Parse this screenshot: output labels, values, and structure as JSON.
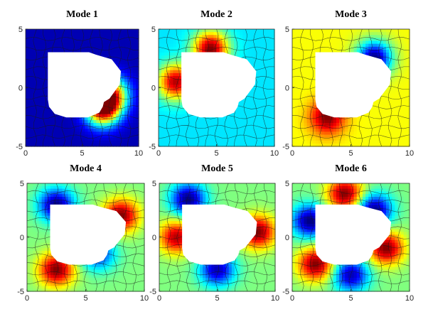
{
  "figure": {
    "layout": "2x3 grid of surface plots on a quadrilateral mesh",
    "colormap": "jet",
    "grid": true
  },
  "chart_data": [
    {
      "type": "heatmap",
      "title": "Mode 1",
      "xlim": [
        0,
        10
      ],
      "ylim": [
        -5,
        5
      ],
      "xticks": [
        "0",
        "5",
        "10"
      ],
      "yticks": [
        "5",
        "0",
        "-5"
      ],
      "pattern": "mostly minimum (dark blue) with a maximum (red) near the notch at the right of the hole",
      "hotspots": [
        {
          "x": 6.8,
          "y": -1.7,
          "level": 1.0
        },
        {
          "x": 7.6,
          "y": -0.5,
          "level": 0.7
        }
      ]
    },
    {
      "type": "heatmap",
      "title": "Mode 2",
      "xlim": [
        0,
        10
      ],
      "ylim": [
        -5,
        5
      ],
      "xticks": [
        "0",
        "5",
        "10"
      ],
      "yticks": [
        "5",
        "0",
        "-5"
      ],
      "pattern": "high ring around the upper and left edges of the hole",
      "hotspots": [
        {
          "x": 4.5,
          "y": 3.3,
          "level": 1.0
        },
        {
          "x": 1.5,
          "y": 0.5,
          "level": 0.95
        }
      ]
    },
    {
      "type": "heatmap",
      "title": "Mode 3",
      "xlim": [
        0,
        10
      ],
      "ylim": [
        -5,
        5
      ],
      "xticks": [
        "0",
        "5",
        "10"
      ],
      "yticks": [
        "5",
        "0",
        "-5"
      ],
      "pattern": "maximum along lower-left of hole, minimum along upper-right of hole",
      "hotspots": [
        {
          "x": 3.0,
          "y": -2.5,
          "level": 1.0
        },
        {
          "x": 7.0,
          "y": 2.5,
          "level": 0.0
        }
      ]
    },
    {
      "type": "heatmap",
      "title": "Mode 4",
      "xlim": [
        0,
        10
      ],
      "ylim": [
        -5,
        5
      ],
      "xticks": [
        "0",
        "5",
        "10"
      ],
      "yticks": [
        "5",
        "0",
        "-5"
      ],
      "pattern": "antisymmetric lobes: max at upper-right and lower-left, min at upper-left and lower-right",
      "hotspots": [
        {
          "x": 8.0,
          "y": 2.0,
          "level": 1.0
        },
        {
          "x": 2.5,
          "y": -3.0,
          "level": 1.0
        },
        {
          "x": 2.5,
          "y": 3.0,
          "level": 0.0
        },
        {
          "x": 6.0,
          "y": -1.5,
          "level": 0.15
        }
      ]
    },
    {
      "type": "heatmap",
      "title": "Mode 5",
      "xlim": [
        0,
        10
      ],
      "ylim": [
        -5,
        5
      ],
      "xticks": [
        "0",
        "5",
        "10"
      ],
      "yticks": [
        "5",
        "0",
        "-5"
      ],
      "pattern": "max at left and right flanks of hole, min at top-left and bottom",
      "hotspots": [
        {
          "x": 8.5,
          "y": 0.5,
          "level": 1.0
        },
        {
          "x": 1.5,
          "y": 0.0,
          "level": 0.95
        },
        {
          "x": 2.5,
          "y": 3.5,
          "level": 0.0
        },
        {
          "x": 5.0,
          "y": -3.0,
          "level": 0.05
        }
      ]
    },
    {
      "type": "heatmap",
      "title": "Mode 6",
      "xlim": [
        0,
        10
      ],
      "ylim": [
        -5,
        5
      ],
      "xticks": [
        "0",
        "5",
        "10"
      ],
      "yticks": [
        "5",
        "0",
        "-5"
      ],
      "pattern": "alternating lobes around the hole",
      "hotspots": [
        {
          "x": 4.5,
          "y": 4.0,
          "level": 1.0
        },
        {
          "x": 8.0,
          "y": -1.0,
          "level": 1.0
        },
        {
          "x": 2.0,
          "y": -2.5,
          "level": 1.0
        },
        {
          "x": 1.5,
          "y": 1.5,
          "level": 0.0
        },
        {
          "x": 7.0,
          "y": 2.5,
          "level": 0.0
        },
        {
          "x": 5.0,
          "y": -3.5,
          "level": 0.05
        }
      ]
    }
  ]
}
